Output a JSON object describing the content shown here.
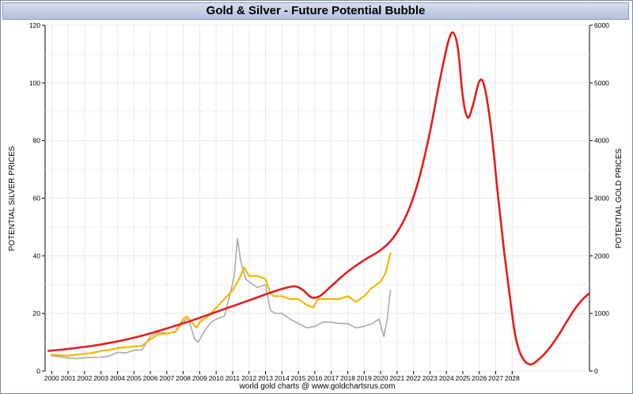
{
  "chart_data": {
    "type": "line",
    "title": "Gold & Silver - Future Potential Bubble",
    "footer": "world gold charts @ www.goldchartsrus.com",
    "y_left_label": "POTENTIAL SILVER PRICES",
    "y_right_label": "POTENTIAL GOLD PRICES",
    "x_ticks": [
      "2000",
      "2001",
      "2002",
      "2003",
      "2004",
      "2005",
      "2006",
      "2007",
      "2008",
      "2009",
      "2010",
      "2011",
      "2012",
      "2013",
      "2014",
      "2015",
      "2016",
      "2017",
      "2018",
      "2019",
      "2020",
      "2021",
      "2022",
      "2023",
      "2024",
      "2025",
      "2026",
      "2027",
      "2028"
    ],
    "y_left_ticks": [
      0,
      20,
      40,
      60,
      80,
      100,
      120
    ],
    "y_right_ticks": [
      0,
      1000,
      2000,
      3000,
      4000,
      5000,
      6000
    ],
    "x_range": [
      1999.6,
      2032.7
    ],
    "y_left_range": [
      0,
      120
    ],
    "y_right_range": [
      0,
      6000
    ],
    "grid": true,
    "series": [
      {
        "role": "gold",
        "axis": "right",
        "color": "#f5b800",
        "x": [
          2000.0,
          2000.5,
          2001.0,
          2001.5,
          2002.0,
          2002.5,
          2003.0,
          2003.5,
          2004.0,
          2004.5,
          2005.0,
          2005.5,
          2006.0,
          2006.5,
          2007.0,
          2007.5,
          2008.0,
          2008.2,
          2008.5,
          2008.8,
          2009.0,
          2009.5,
          2010.0,
          2010.5,
          2011.0,
          2011.4,
          2011.7,
          2012.0,
          2012.5,
          2013.0,
          2013.3,
          2013.5,
          2014.0,
          2014.5,
          2015.0,
          2015.5,
          2015.9,
          2016.2,
          2016.5,
          2017.0,
          2017.5,
          2018.0,
          2018.5,
          2019.0,
          2019.5,
          2020.0,
          2020.3,
          2020.6
        ],
        "y": [
          285,
          275,
          265,
          285,
          300,
          315,
          350,
          365,
          400,
          410,
          425,
          440,
          550,
          640,
          650,
          680,
          900,
          950,
          850,
          750,
          850,
          950,
          1100,
          1250,
          1400,
          1600,
          1800,
          1650,
          1650,
          1600,
          1350,
          1300,
          1300,
          1250,
          1250,
          1150,
          1100,
          1250,
          1250,
          1250,
          1250,
          1300,
          1200,
          1300,
          1450,
          1550,
          1700,
          2050
        ]
      },
      {
        "role": "silver",
        "axis": "left",
        "color": "#aaaaaa",
        "x": [
          2000.0,
          2000.5,
          2001.0,
          2001.5,
          2002.0,
          2002.5,
          2003.0,
          2003.5,
          2004.0,
          2004.5,
          2005.0,
          2005.5,
          2006.0,
          2006.5,
          2007.0,
          2007.5,
          2008.0,
          2008.3,
          2008.7,
          2008.9,
          2009.3,
          2009.7,
          2010.0,
          2010.5,
          2010.9,
          2011.1,
          2011.3,
          2011.5,
          2011.8,
          2012.0,
          2012.5,
          2013.0,
          2013.3,
          2013.6,
          2014.0,
          2014.5,
          2015.0,
          2015.5,
          2016.0,
          2016.5,
          2017.0,
          2017.5,
          2018.0,
          2018.5,
          2019.0,
          2019.5,
          2019.9,
          2020.2,
          2020.4,
          2020.6
        ],
        "y": [
          5.3,
          5.0,
          4.5,
          4.3,
          4.6,
          4.8,
          4.8,
          5.2,
          6.5,
          6.3,
          7.2,
          7.4,
          12.0,
          13.5,
          13.0,
          13.5,
          17.0,
          18.5,
          11.0,
          10.0,
          14.0,
          17.0,
          18.0,
          19.0,
          28.0,
          33.0,
          46.0,
          38.0,
          32.0,
          31.0,
          29.0,
          30.0,
          21.0,
          20.0,
          20.0,
          18.0,
          16.5,
          15.0,
          15.5,
          17.0,
          17.0,
          16.5,
          16.5,
          15.0,
          15.5,
          16.5,
          18.0,
          12.0,
          18.0,
          28.0
        ]
      },
      {
        "role": "projection",
        "axis": "left",
        "color": "#e81c1c",
        "x": [
          1999.8,
          2001.0,
          2002.5,
          2004.0,
          2005.5,
          2007.0,
          2008.5,
          2010.0,
          2011.5,
          2013.0,
          2014.0,
          2014.8,
          2015.3,
          2015.8,
          2016.3,
          2017.0,
          2018.0,
          2019.0,
          2020.0,
          2020.8,
          2021.6,
          2022.3,
          2023.0,
          2023.6,
          2024.1,
          2024.4,
          2024.7,
          2025.0,
          2025.3,
          2025.6,
          2026.0,
          2026.3,
          2026.7,
          2027.1,
          2027.5,
          2027.9,
          2028.2,
          2028.6,
          2029.1,
          2029.6,
          2030.2,
          2030.8,
          2031.3,
          2031.8,
          2032.3,
          2032.7
        ],
        "y": [
          7.0,
          7.7,
          8.8,
          10.3,
          12.3,
          14.8,
          17.5,
          20.5,
          23.5,
          26.6,
          28.5,
          29.4,
          28.0,
          25.6,
          26.0,
          29.5,
          34.5,
          38.5,
          42.0,
          46.5,
          54.5,
          66.0,
          83.0,
          101.0,
          114.0,
          117.5,
          112.0,
          95.0,
          88.0,
          92.0,
          100.5,
          99.0,
          85.0,
          63.0,
          42.0,
          24.0,
          12.0,
          4.8,
          2.3,
          4.0,
          7.5,
          12.3,
          17.0,
          21.5,
          25.0,
          27.0
        ]
      }
    ]
  }
}
